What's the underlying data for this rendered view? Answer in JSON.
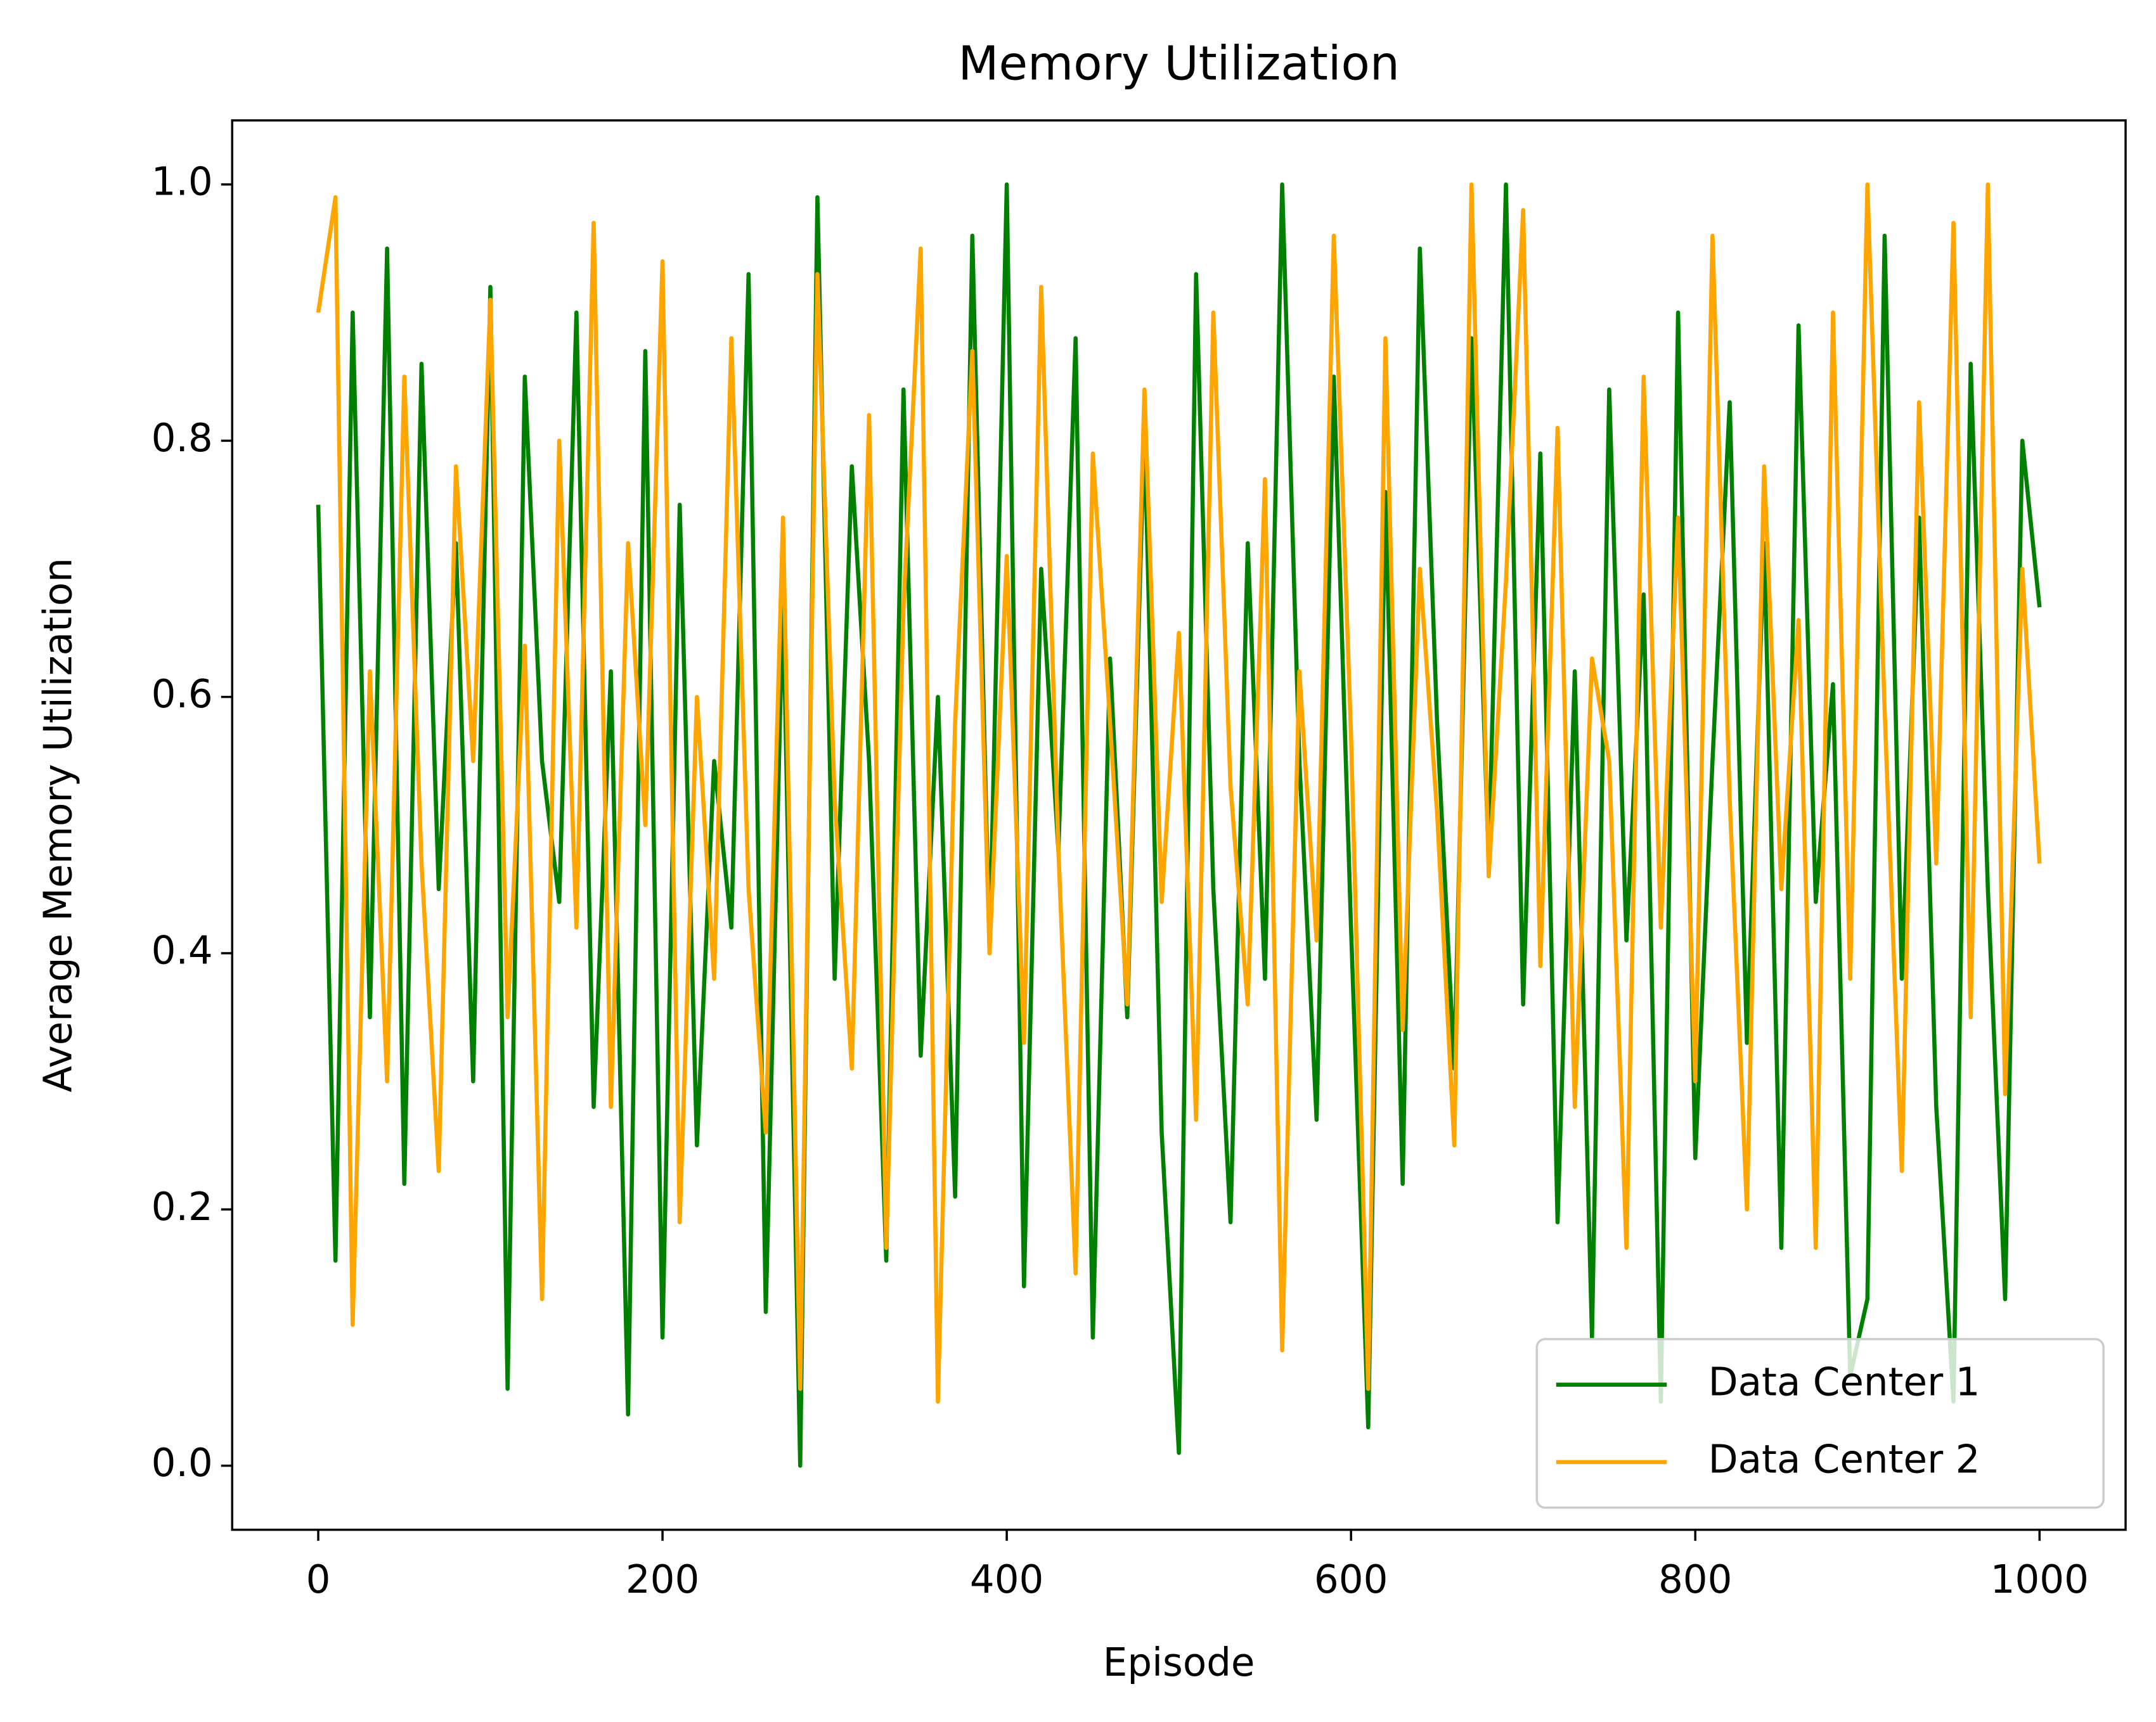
{
  "chart_data": {
    "type": "line",
    "title": "Memory Utilization",
    "x_label": "Episode",
    "y_label": "Average Memory Utilization",
    "x": [
      0,
      10,
      20,
      30,
      40,
      50,
      60,
      70,
      80,
      90,
      100,
      110,
      120,
      130,
      140,
      150,
      160,
      170,
      180,
      190,
      200,
      210,
      220,
      230,
      240,
      250,
      260,
      270,
      280,
      290,
      300,
      310,
      320,
      330,
      340,
      350,
      360,
      370,
      380,
      390,
      400,
      410,
      420,
      430,
      440,
      450,
      460,
      470,
      480,
      490,
      500,
      510,
      520,
      530,
      540,
      550,
      560,
      570,
      580,
      590,
      600,
      610,
      620,
      630,
      640,
      650,
      660,
      670,
      680,
      690,
      700,
      710,
      720,
      730,
      740,
      750,
      760,
      770,
      780,
      790,
      800,
      810,
      820,
      830,
      840,
      850,
      860,
      870,
      880,
      890,
      900,
      910,
      920,
      930,
      940,
      950,
      960,
      970,
      980,
      990,
      1000
    ],
    "series": [
      {
        "name": "Data Center 1",
        "color": "#008000",
        "values": [
          0.75,
          0.16,
          0.9,
          0.35,
          0.95,
          0.22,
          0.86,
          0.45,
          0.72,
          0.3,
          0.92,
          0.06,
          0.85,
          0.55,
          0.44,
          0.9,
          0.28,
          0.62,
          0.04,
          0.87,
          0.1,
          0.75,
          0.25,
          0.55,
          0.42,
          0.93,
          0.12,
          0.68,
          0.0,
          0.99,
          0.38,
          0.78,
          0.55,
          0.16,
          0.84,
          0.32,
          0.6,
          0.21,
          0.96,
          0.4,
          1.0,
          0.14,
          0.7,
          0.48,
          0.88,
          0.1,
          0.63,
          0.35,
          0.81,
          0.26,
          0.01,
          0.93,
          0.45,
          0.19,
          0.72,
          0.38,
          1.0,
          0.55,
          0.27,
          0.85,
          0.42,
          0.03,
          0.76,
          0.22,
          0.95,
          0.58,
          0.31,
          0.88,
          0.47,
          1.0,
          0.36,
          0.79,
          0.19,
          0.62,
          0.1,
          0.84,
          0.41,
          0.68,
          0.05,
          0.9,
          0.24,
          0.55,
          0.83,
          0.33,
          0.72,
          0.17,
          0.89,
          0.44,
          0.61,
          0.07,
          0.13,
          0.96,
          0.38,
          0.74,
          0.28,
          0.05,
          0.86,
          0.45,
          0.13,
          0.8,
          0.67
        ]
      },
      {
        "name": "Data Center 2",
        "color": "#ffa500",
        "values": [
          0.9,
          0.99,
          0.11,
          0.62,
          0.3,
          0.85,
          0.47,
          0.23,
          0.78,
          0.55,
          0.91,
          0.35,
          0.64,
          0.13,
          0.8,
          0.42,
          0.97,
          0.28,
          0.72,
          0.5,
          0.94,
          0.19,
          0.6,
          0.38,
          0.88,
          0.45,
          0.26,
          0.74,
          0.06,
          0.93,
          0.52,
          0.31,
          0.82,
          0.17,
          0.67,
          0.95,
          0.05,
          0.58,
          0.87,
          0.4,
          0.71,
          0.33,
          0.92,
          0.48,
          0.15,
          0.79,
          0.58,
          0.36,
          0.84,
          0.44,
          0.65,
          0.27,
          0.9,
          0.53,
          0.36,
          0.77,
          0.09,
          0.62,
          0.41,
          0.96,
          0.57,
          0.06,
          0.88,
          0.34,
          0.7,
          0.51,
          0.25,
          1.0,
          0.46,
          0.69,
          0.98,
          0.39,
          0.81,
          0.28,
          0.63,
          0.55,
          0.17,
          0.85,
          0.42,
          0.74,
          0.3,
          0.96,
          0.52,
          0.2,
          0.78,
          0.45,
          0.66,
          0.17,
          0.9,
          0.38,
          1.0,
          0.59,
          0.23,
          0.83,
          0.47,
          0.97,
          0.35,
          1.0,
          0.29,
          0.7,
          0.47
        ]
      }
    ],
    "xlim": [
      -50,
      1050
    ],
    "ylim": [
      -0.05,
      1.05
    ],
    "xticks": [
      0,
      200,
      400,
      600,
      800,
      1000
    ],
    "yticks": [
      {
        "value": 0,
        "label": "0.0"
      },
      0.2,
      0.4,
      0.6,
      0.8,
      {
        "value": 1,
        "label": "1.0"
      }
    ],
    "legend": "lower right"
  }
}
